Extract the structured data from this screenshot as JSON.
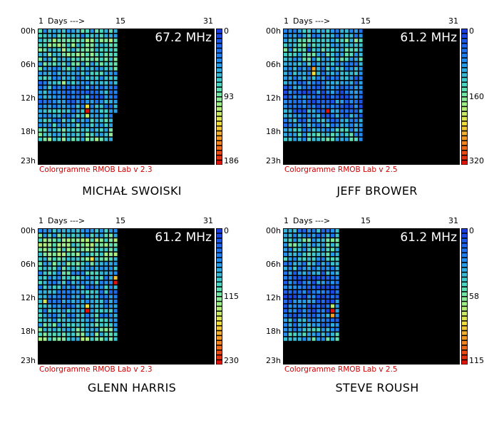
{
  "chart_data": [
    {
      "type": "heatmap",
      "station": "MICHAŁ SWOISKI",
      "frequency_label": "67.2 MHz",
      "software_label": "Colorgramme RMOB Lab v 2.3",
      "x_header": {
        "start": "1",
        "label": "Days --->",
        "mid": "15",
        "end": "31"
      },
      "y_ticks": [
        "00h",
        "06h",
        "12h",
        "18h",
        "23h"
      ],
      "scale_ticks": [
        "0",
        "93",
        "186"
      ],
      "vmax": 186,
      "days_with_data": 17,
      "last_day_partial": 0.77,
      "typical_level": 0.34,
      "hotspots": [
        {
          "day": 11,
          "hour": 17,
          "level": 1.0
        },
        {
          "day": 11,
          "hour": 16,
          "level": 0.7
        },
        {
          "day": 11,
          "hour": 18,
          "level": 0.6
        },
        {
          "day": 6,
          "hour": 11,
          "level": 0.55
        }
      ]
    },
    {
      "type": "heatmap",
      "station": "JEFF BROWER",
      "frequency_label": "61.2 MHz",
      "software_label": "Colorgramme RMOB Lab v 2.5",
      "x_header": {
        "start": "1",
        "label": "Days --->",
        "mid": "15",
        "end": "31"
      },
      "y_ticks": [
        "00h",
        "06h",
        "12h",
        "18h",
        "23h"
      ],
      "scale_ticks": [
        "0",
        "160",
        "320"
      ],
      "vmax": 320,
      "days_with_data": 17,
      "last_day_partial": 1.0,
      "typical_level": 0.27,
      "hotspots": [
        {
          "day": 10,
          "hour": 17,
          "level": 1.0
        },
        {
          "day": 7,
          "hour": 8,
          "level": 0.8
        },
        {
          "day": 7,
          "hour": 9,
          "level": 0.7
        },
        {
          "day": 6,
          "hour": 4,
          "level": 0.05
        }
      ]
    },
    {
      "type": "heatmap",
      "station": "GLENN HARRIS",
      "frequency_label": "61.2 MHz",
      "software_label": "Colorgramme RMOB Lab v 2.3",
      "x_header": {
        "start": "1",
        "label": "Days --->",
        "mid": "15",
        "end": "31"
      },
      "y_ticks": [
        "00h",
        "06h",
        "12h",
        "18h",
        "23h"
      ],
      "scale_ticks": [
        "0",
        "115",
        "230"
      ],
      "vmax": 230,
      "days_with_data": 17,
      "last_day_partial": 1.0,
      "typical_level": 0.36,
      "hotspots": [
        {
          "day": 17,
          "hour": 11,
          "level": 1.0
        },
        {
          "day": 17,
          "hour": 10,
          "level": 0.75
        },
        {
          "day": 11,
          "hour": 17,
          "level": 1.0
        },
        {
          "day": 11,
          "hour": 16,
          "level": 0.7
        },
        {
          "day": 12,
          "hour": 6,
          "level": 0.7
        },
        {
          "day": 2,
          "hour": 15,
          "level": 0.65
        }
      ]
    },
    {
      "type": "heatmap",
      "station": "STEVE ROUSH",
      "frequency_label": "61.2 MHz",
      "software_label": "Colorgramme RMOB Lab v 2.5",
      "x_header": {
        "start": "1",
        "label": "Days --->",
        "mid": "15",
        "end": "31"
      },
      "y_ticks": [
        "00h",
        "06h",
        "12h",
        "18h",
        "23h"
      ],
      "scale_ticks": [
        "0",
        "58",
        "115"
      ],
      "vmax": 115,
      "days_with_data": 12,
      "last_day_partial": 1.0,
      "typical_level": 0.25,
      "hotspots": [
        {
          "day": 11,
          "hour": 17,
          "level": 1.0
        },
        {
          "day": 11,
          "hour": 18,
          "level": 0.8
        },
        {
          "day": 11,
          "hour": 16,
          "level": 0.6
        }
      ]
    }
  ]
}
